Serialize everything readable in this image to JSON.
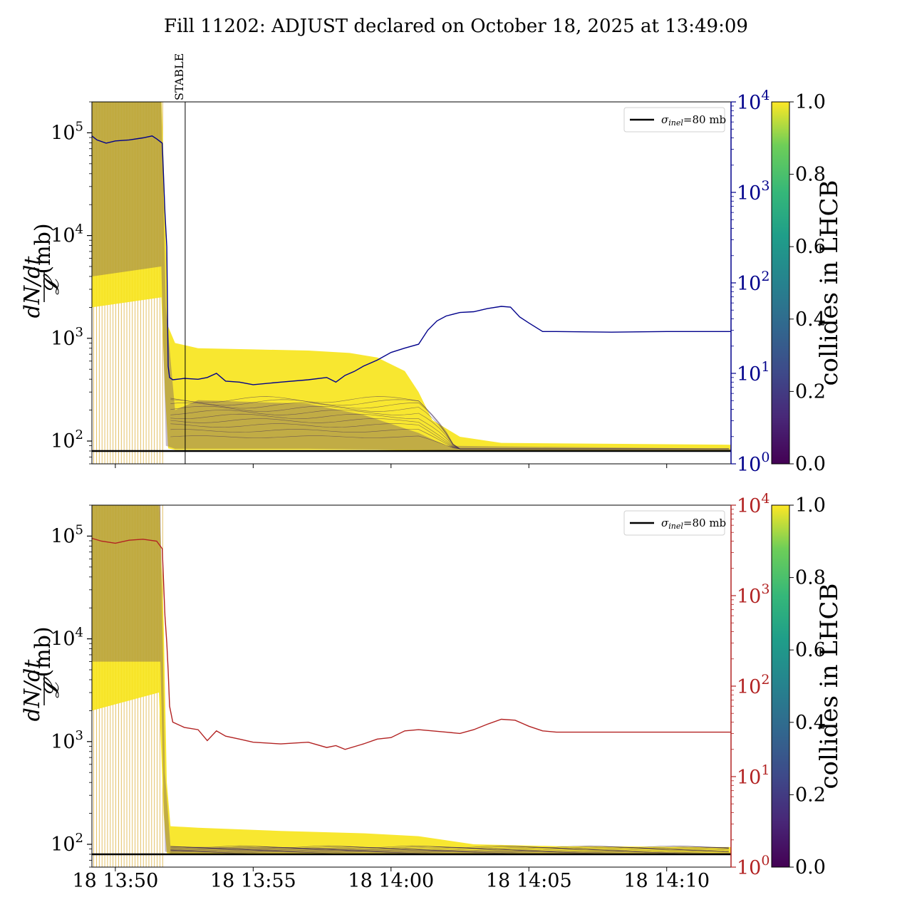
{
  "title": "Fill 11202: ADJUST declared on October 18, 2025 at 13:49:09",
  "chart_data": [
    {
      "type": "line",
      "panel": "top",
      "ylabel_num": "dN/dt",
      "ylabel_den": "𝓛",
      "ylabel_unit": "(mb)",
      "y_scale": "log",
      "ylim": [
        60,
        200000
      ],
      "yticks": [
        "10",
        "10",
        "10",
        "10"
      ],
      "ytick_exps": [
        "5",
        "4",
        "3",
        "2"
      ],
      "y2_scale": "log",
      "y2lim": [
        1,
        10000
      ],
      "y2ticks": [
        "10",
        "10",
        "10",
        "10",
        "10"
      ],
      "y2tick_exps": [
        "4",
        "3",
        "2",
        "1",
        "0"
      ],
      "y2_color": "#00008b",
      "x_time": [
        "13:49:09",
        "14:12:20"
      ],
      "xticks": [
        "18 13:50",
        "18 13:55",
        "18 14:00",
        "18 14:05",
        "18 14:10"
      ],
      "legend": {
        "label_main": "σ",
        "label_sub": "inel",
        "label_rest": "=80 mb",
        "loc": "upper right"
      },
      "reference_line": 80,
      "annotation": "STABLE",
      "stable_time": "13:52:32",
      "series": [
        {
          "axis": "right",
          "color": "#00008b",
          "points": [
            [
              "13:49:09",
              4200
            ],
            [
              "13:49:20",
              3800
            ],
            [
              "13:49:40",
              3500
            ],
            [
              "13:50:00",
              3700
            ],
            [
              "13:50:30",
              3800
            ],
            [
              "13:51:00",
              4000
            ],
            [
              "13:51:20",
              4200
            ],
            [
              "13:51:30",
              3900
            ],
            [
              "13:51:42",
              3500
            ],
            [
              "13:51:48",
              600
            ],
            [
              "13:51:52",
              250
            ],
            [
              "13:51:55",
              12
            ],
            [
              "13:51:58",
              9
            ],
            [
              "13:52:05",
              8.5
            ],
            [
              "13:52:30",
              8.8
            ],
            [
              "13:53:00",
              8.6
            ],
            [
              "13:53:20",
              9
            ],
            [
              "13:53:40",
              10
            ],
            [
              "13:54:00",
              8.2
            ],
            [
              "13:54:30",
              8
            ],
            [
              "13:55:00",
              7.5
            ],
            [
              "13:56:00",
              8
            ],
            [
              "13:57:00",
              8.5
            ],
            [
              "13:57:40",
              9
            ],
            [
              "13:58:00",
              8
            ],
            [
              "13:58:20",
              9.5
            ],
            [
              "13:58:40",
              10.5
            ],
            [
              "13:59:00",
              12
            ],
            [
              "13:59:30",
              14
            ],
            [
              "14:00:00",
              17
            ],
            [
              "14:00:30",
              19
            ],
            [
              "14:01:00",
              21
            ],
            [
              "14:01:20",
              30
            ],
            [
              "14:01:40",
              38
            ],
            [
              "14:02:00",
              43
            ],
            [
              "14:02:30",
              47
            ],
            [
              "14:03:00",
              48
            ],
            [
              "14:03:30",
              52
            ],
            [
              "14:04:00",
              55
            ],
            [
              "14:04:20",
              54
            ],
            [
              "14:04:40",
              42
            ],
            [
              "14:05:00",
              36
            ],
            [
              "14:05:30",
              29
            ],
            [
              "14:06:00",
              29
            ],
            [
              "14:08:00",
              28.5
            ],
            [
              "14:10:00",
              29
            ],
            [
              "14:12:20",
              29
            ]
          ]
        }
      ],
      "colorbar": {
        "label": "collides in LHCB",
        "ticks": [
          "0.0",
          "0.2",
          "0.4",
          "0.6",
          "0.8",
          "1.0"
        ],
        "cmap": "viridis"
      }
    },
    {
      "type": "line",
      "panel": "bottom",
      "ylabel_num": "dN/dt",
      "ylabel_den": "𝓛",
      "ylabel_unit": "(mb)",
      "y_scale": "log",
      "ylim": [
        60,
        200000
      ],
      "yticks": [
        "10",
        "10",
        "10",
        "10"
      ],
      "ytick_exps": [
        "5",
        "4",
        "3",
        "2"
      ],
      "y2_scale": "log",
      "y2lim": [
        1,
        10000
      ],
      "y2ticks": [
        "10",
        "10",
        "10",
        "10",
        "10"
      ],
      "y2tick_exps": [
        "4",
        "3",
        "2",
        "1",
        "0"
      ],
      "y2_color": "#b22222",
      "x_time": [
        "13:49:09",
        "14:12:20"
      ],
      "xticks": [
        "18 13:50",
        "18 13:55",
        "18 14:00",
        "18 14:05",
        "18 14:10"
      ],
      "legend": {
        "label_main": "σ",
        "label_sub": "inel",
        "label_rest": "=80 mb",
        "loc": "upper right"
      },
      "reference_line": 80,
      "series": [
        {
          "axis": "right",
          "color": "#b22222",
          "points": [
            [
              "13:49:09",
              4300
            ],
            [
              "13:49:30",
              4000
            ],
            [
              "13:50:00",
              3800
            ],
            [
              "13:50:30",
              4100
            ],
            [
              "13:51:00",
              4200
            ],
            [
              "13:51:30",
              4000
            ],
            [
              "13:51:42",
              3300
            ],
            [
              "13:51:48",
              600
            ],
            [
              "13:51:52",
              300
            ],
            [
              "13:51:55",
              150
            ],
            [
              "13:51:58",
              60
            ],
            [
              "13:52:05",
              40
            ],
            [
              "13:52:30",
              35
            ],
            [
              "13:53:00",
              33
            ],
            [
              "13:53:20",
              25
            ],
            [
              "13:53:40",
              32
            ],
            [
              "13:54:00",
              28
            ],
            [
              "13:54:30",
              26
            ],
            [
              "13:55:00",
              24
            ],
            [
              "13:56:00",
              23
            ],
            [
              "13:57:00",
              24
            ],
            [
              "13:57:40",
              21
            ],
            [
              "13:58:00",
              22
            ],
            [
              "13:58:20",
              20
            ],
            [
              "13:59:00",
              23
            ],
            [
              "13:59:30",
              26
            ],
            [
              "14:00:00",
              27
            ],
            [
              "14:00:30",
              32
            ],
            [
              "14:01:00",
              33
            ],
            [
              "14:02:00",
              31
            ],
            [
              "14:02:30",
              30
            ],
            [
              "14:03:00",
              33
            ],
            [
              "14:03:30",
              38
            ],
            [
              "14:04:00",
              43
            ],
            [
              "14:04:30",
              42
            ],
            [
              "14:05:00",
              36
            ],
            [
              "14:05:30",
              32
            ],
            [
              "14:06:00",
              31
            ],
            [
              "14:08:00",
              31
            ],
            [
              "14:10:00",
              31
            ],
            [
              "14:12:20",
              31
            ]
          ]
        }
      ],
      "colorbar": {
        "label": "collides in LHCB",
        "ticks": [
          "0.0",
          "0.2",
          "0.4",
          "0.6",
          "0.8",
          "1.0"
        ],
        "cmap": "viridis"
      }
    }
  ]
}
